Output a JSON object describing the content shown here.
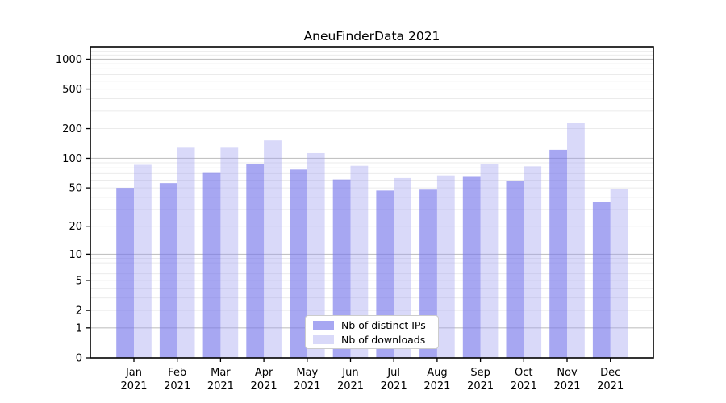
{
  "chart_data": {
    "type": "bar",
    "title": "AneuFinderData 2021",
    "categories": [
      "Jan",
      "Feb",
      "Mar",
      "Apr",
      "May",
      "Jun",
      "Jul",
      "Aug",
      "Sep",
      "Oct",
      "Nov",
      "Dec"
    ],
    "x_sublabel": "2021",
    "series": [
      {
        "name": "Nb of distinct IPs",
        "color": "rgba(120,120,235,0.65)",
        "values": [
          50,
          56,
          71,
          88,
          77,
          61,
          47,
          48,
          66,
          59,
          122,
          36
        ]
      },
      {
        "name": "Nb of downloads",
        "color": "rgba(160,160,240,0.40)",
        "values": [
          86,
          128,
          128,
          152,
          113,
          84,
          63,
          67,
          87,
          83,
          228,
          49
        ]
      }
    ],
    "yscale": "log10(value+1)",
    "yticks": [
      0,
      1,
      2,
      5,
      10,
      20,
      50,
      100,
      200,
      500,
      1000
    ],
    "ylim": [
      0,
      1348
    ],
    "grid": "on",
    "legend_position": "bottom-center",
    "colors": {
      "major_gridline": "#c3c3c3",
      "minor_gridline": "#ebebeb",
      "spine": "#000000",
      "text": "#000000",
      "background": "#ffffff"
    }
  }
}
